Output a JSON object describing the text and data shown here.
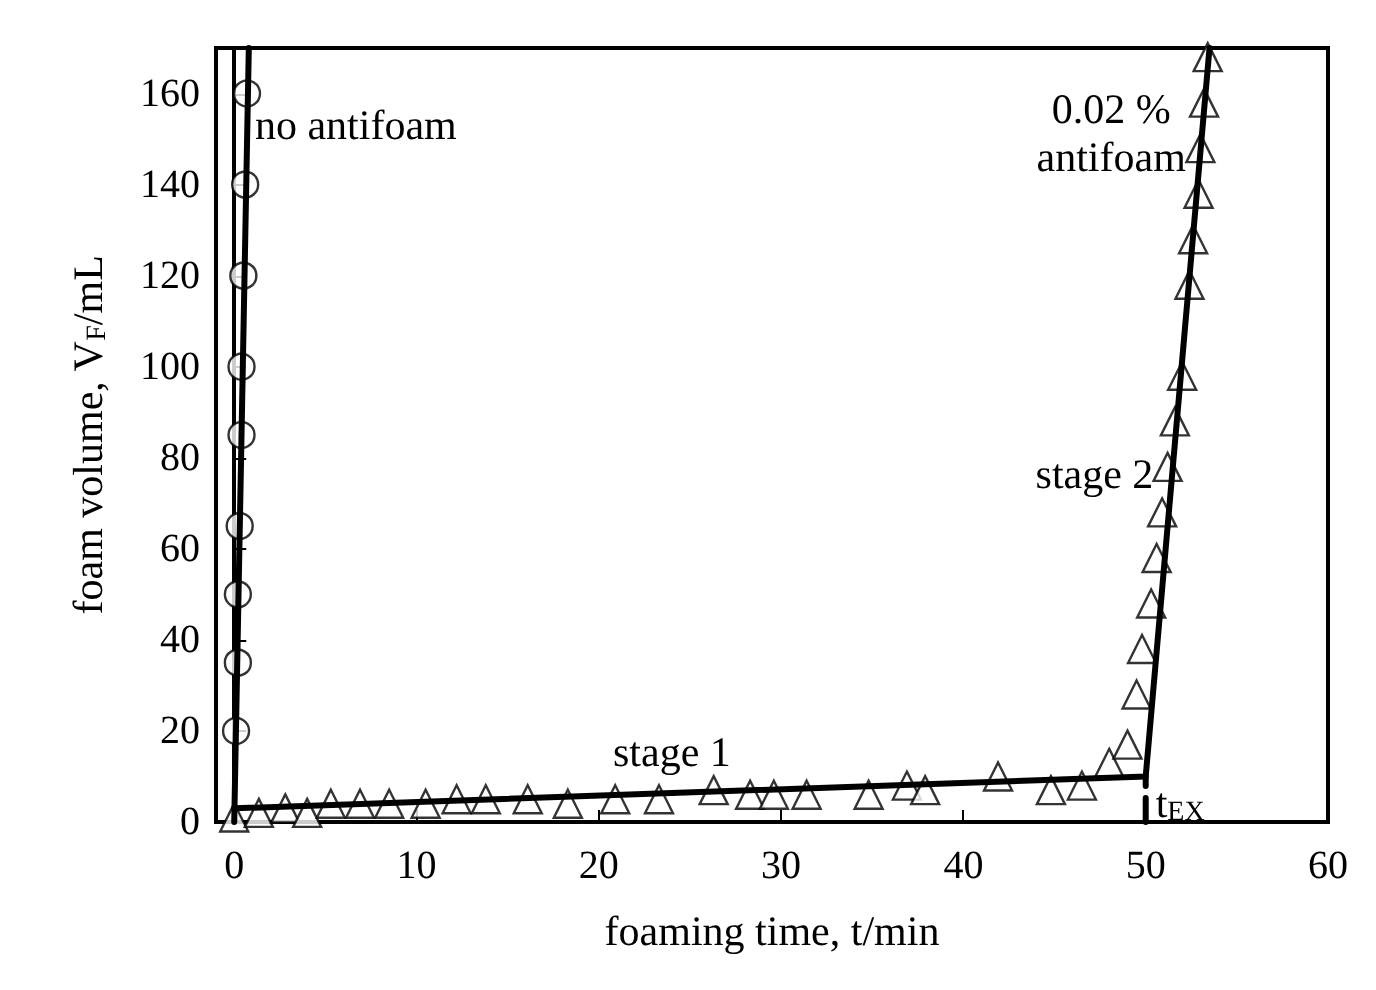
{
  "chart_data": {
    "type": "scatter",
    "xlabel": "foaming time, t/min",
    "ylabel": "foam volume, V$_{F}$/mL",
    "xlim": [
      -1,
      60
    ],
    "xticks": [
      0,
      10,
      20,
      30,
      40,
      50,
      60
    ],
    "ylim": [
      0,
      170
    ],
    "yticks": [
      0,
      20,
      40,
      60,
      80,
      100,
      120,
      140,
      160
    ],
    "series": [
      {
        "type": "line",
        "marker": "none",
        "line_style": "solid",
        "color": "#000000",
        "x": [
          0,
          0.8
        ],
        "values": [
          0,
          170
        ]
      },
      {
        "type": "line",
        "marker": "none",
        "line_style": "solid",
        "color": "#000000",
        "x": [
          0,
          50,
          53.5
        ],
        "values": [
          3,
          10,
          170
        ]
      },
      {
        "type": "line",
        "marker": "none",
        "line_style": "dashed",
        "color": "#000000",
        "x": [
          50,
          50
        ],
        "values": [
          0,
          10
        ]
      },
      {
        "marker": "circle",
        "color": "#000000",
        "x": [
          0.1,
          0.2,
          0.2,
          0.3,
          0.4,
          0.4,
          0.5,
          0.6,
          0.7
        ],
        "values": [
          20,
          35,
          50,
          65,
          85,
          100,
          120,
          140,
          160
        ]
      },
      {
        "marker": "triangle",
        "color": "#000000",
        "x": [
          0,
          1.35,
          2.8,
          4.0,
          5.3,
          6.9,
          8.5,
          10.5,
          12.2,
          13.8,
          16.1,
          18.3,
          20.9,
          23.3,
          26.3,
          28.3,
          29.6,
          31.4,
          34.8,
          36.9,
          37.9,
          41.9,
          44.8,
          46.5,
          48,
          49,
          49.5,
          49.8,
          50.3,
          50.6,
          50.9,
          51.2,
          51.6,
          52,
          52.4,
          52.6,
          52.9,
          53,
          53.2,
          53.4
        ],
        "values": [
          1,
          2,
          3,
          2,
          4,
          4,
          4,
          4,
          5,
          5,
          5,
          4,
          5,
          5,
          7,
          6,
          6,
          6,
          6,
          8,
          7,
          10,
          7,
          8,
          13,
          17,
          28,
          38,
          48,
          58,
          68,
          78,
          88,
          98,
          118,
          128,
          138,
          148,
          158,
          168
        ]
      }
    ],
    "annotations": [
      "no antifoam",
      "0.02 %\nantifoam",
      "stage 1",
      "stage 2",
      "t$_{EX}$"
    ]
  }
}
